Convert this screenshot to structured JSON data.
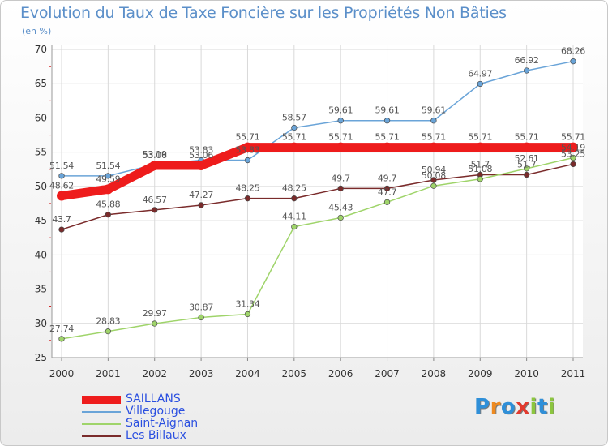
{
  "title": "Evolution du Taux de Taxe Foncière sur les Propriétés Non Bâties",
  "subtitle": "(en %)",
  "logo": {
    "text": "Proxiti",
    "letters": [
      {
        "ch": "P",
        "color": "#2f8fd8"
      },
      {
        "ch": "r",
        "color": "#ef8a20"
      },
      {
        "ch": "o",
        "color": "#2f8fd8"
      },
      {
        "ch": "x",
        "color": "#e23a2e"
      },
      {
        "ch": "i",
        "color": "#8cc63f"
      },
      {
        "ch": "t",
        "color": "#2f8fd8"
      },
      {
        "ch": "i",
        "color": "#8cc63f"
      }
    ]
  },
  "chart_data": {
    "type": "line",
    "x": [
      "2000",
      "2001",
      "2002",
      "2003",
      "2004",
      "2005",
      "2006",
      "2007",
      "2008",
      "2009",
      "2010",
      "2011"
    ],
    "ylim": [
      25,
      70
    ],
    "yticks": [
      "25",
      "30",
      "35",
      "40",
      "45",
      "50",
      "55",
      "60",
      "65",
      "70"
    ],
    "grid": true,
    "legend_position": "bottom-left",
    "series": [
      {
        "name": "SAILLANS",
        "color": "#ee1c1c",
        "values": [
          48.62,
          49.59,
          53.06,
          53.06,
          55.71,
          55.71,
          55.71,
          55.71,
          55.71,
          55.71,
          55.71,
          55.71
        ],
        "labels": [
          "48.62",
          "49.59",
          "53.06",
          "53.06",
          "55.71",
          "55.71",
          "55.71",
          "55.71",
          "55.71",
          "55.71",
          "55.71",
          "55.71"
        ]
      },
      {
        "name": "Villegouge",
        "color": "#6aa4d8",
        "values": [
          51.54,
          51.54,
          53.19,
          53.83,
          53.83,
          58.57,
          59.61,
          59.61,
          59.61,
          64.97,
          66.92,
          68.26
        ],
        "labels": [
          "51.54",
          "51.54",
          "53.19",
          "53.83",
          "53.83",
          "58.57",
          "59.61",
          "59.61",
          "59.61",
          "64.97",
          "66.92",
          "68.26"
        ]
      },
      {
        "name": "Saint-Aignan",
        "color": "#9fd46a",
        "values": [
          27.74,
          28.83,
          29.97,
          30.87,
          31.34,
          44.11,
          45.43,
          47.7,
          50.08,
          51.08,
          52.61,
          54.19
        ],
        "labels": [
          "27.74",
          "28.83",
          "29.97",
          "30.87",
          "31.34",
          "44.11",
          "45.43",
          "47.7",
          "50.08",
          "51.08",
          "52.61",
          "54.19"
        ]
      },
      {
        "name": "Les Billaux",
        "color": "#7a2b2b",
        "values": [
          43.7,
          45.88,
          46.57,
          47.27,
          48.25,
          48.25,
          49.7,
          49.7,
          50.94,
          51.7,
          51.7,
          53.25
        ],
        "labels": [
          "43.7",
          "45.88",
          "46.57",
          "47.27",
          "48.25",
          "48.25",
          "49.7",
          "49.7",
          "50.94",
          "51.7",
          "51.7",
          "53.25"
        ]
      }
    ]
  }
}
